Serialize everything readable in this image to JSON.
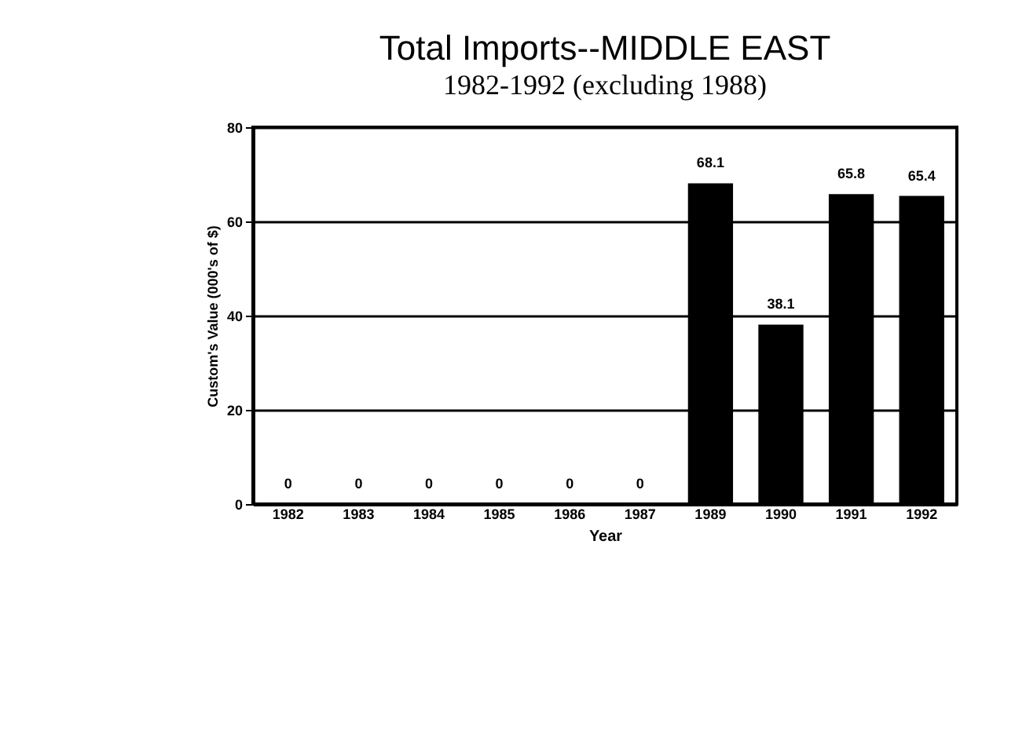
{
  "chart_data": {
    "type": "bar",
    "title": "Total Imports--MIDDLE EAST",
    "subtitle": "1982-1992 (excluding 1988)",
    "xlabel": "Year",
    "ylabel": "Custom's Value (000's of $)",
    "categories": [
      "1982",
      "1983",
      "1984",
      "1985",
      "1986",
      "1987",
      "1989",
      "1990",
      "1991",
      "1992"
    ],
    "values": [
      0,
      0,
      0,
      0,
      0,
      0,
      68.1,
      38.1,
      65.8,
      65.4
    ],
    "color": "#000000",
    "ylim": [
      0,
      80
    ],
    "yticks": [
      0,
      20,
      40,
      60,
      80
    ],
    "grid": "y",
    "data_labels": true
  }
}
